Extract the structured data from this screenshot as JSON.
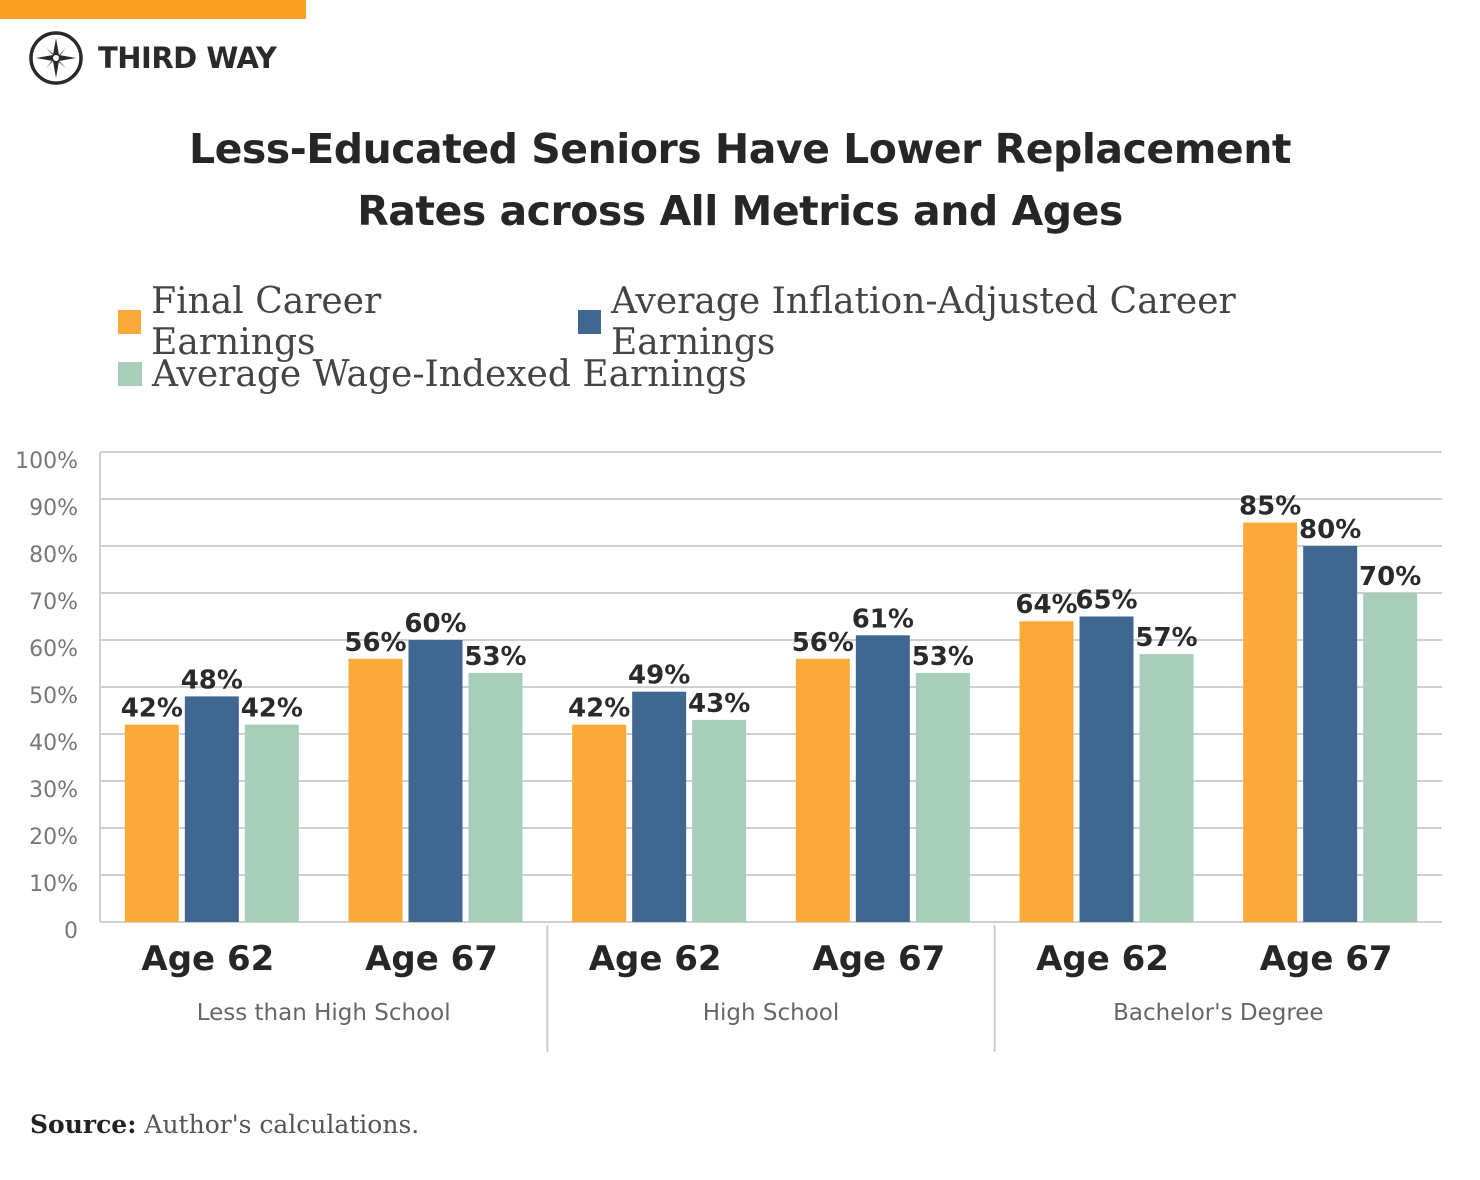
{
  "brand": {
    "name": "THIRD WAY",
    "accent": "#F9A024"
  },
  "chart_data": {
    "type": "bar",
    "title": "Less-Educated Seniors Have Lower Replacement Rates across All Metrics and Ages",
    "title_lines": [
      "Less-Educated Seniors Have Lower Replacement",
      "Rates across All Metrics and Ages"
    ],
    "groups": [
      "Less than High School",
      "High School",
      "Bachelor's Degree"
    ],
    "categories": [
      "Age 62",
      "Age 67",
      "Age 62",
      "Age 67",
      "Age 62",
      "Age 67"
    ],
    "series": [
      {
        "name": "Final Career Earnings",
        "color": "#FBAA3A",
        "values": [
          42,
          56,
          42,
          56,
          64,
          85
        ]
      },
      {
        "name": "Average Inflation-Adjusted Career Earnings",
        "color": "#3F6790",
        "values": [
          48,
          60,
          49,
          61,
          65,
          80
        ]
      },
      {
        "name": "Average Wage-Indexed Earnings",
        "color": "#A8CDB8",
        "values": [
          42,
          53,
          43,
          53,
          57,
          70
        ]
      }
    ],
    "data_label_suffix": "%",
    "yticks": [
      "0",
      "10%",
      "20%",
      "30%",
      "40%",
      "50%",
      "60%",
      "70%",
      "80%",
      "90%",
      "100%"
    ],
    "ylim": [
      0,
      100
    ],
    "grid": true,
    "legend_placement": "top-left",
    "xlabel": "",
    "ylabel": ""
  },
  "source": {
    "label": "Source:",
    "text": "Author's calculations."
  }
}
